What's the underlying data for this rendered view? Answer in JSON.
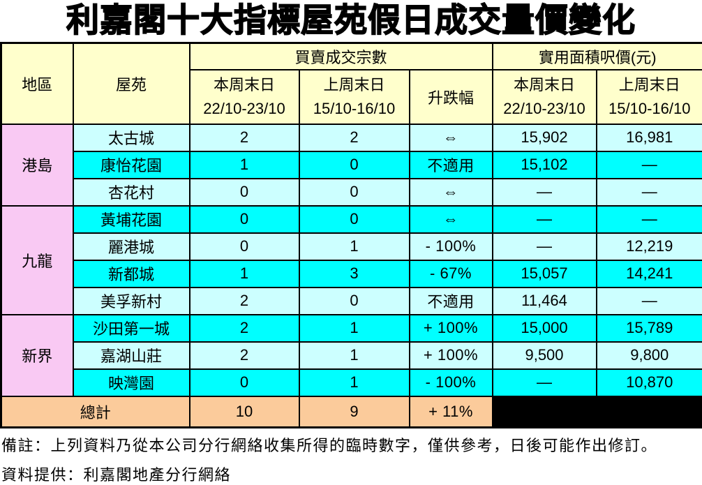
{
  "title": "利嘉閣十大指標屋苑假日成交量價變化",
  "table": {
    "headers": {
      "district": "地區",
      "estate": "屋苑",
      "transactions_group": "買賣成交宗數",
      "price_group": "實用面積呎價(元)",
      "this_week_label": "本周末日",
      "this_week_dates": "22/10-23/10",
      "last_week_label": "上周末日",
      "last_week_dates": "15/10-16/10",
      "change": "升跌幅"
    },
    "districts": [
      {
        "name": "港島",
        "rowspan": 3
      },
      {
        "name": "九龍",
        "rowspan": 4
      },
      {
        "name": "新界",
        "rowspan": 3
      }
    ],
    "rows": [
      {
        "estate": "太古城",
        "tx_this": "2",
        "tx_last": "2",
        "change": "⇔",
        "px_this": "15,902",
        "px_last": "16,981"
      },
      {
        "estate": "康怡花園",
        "tx_this": "1",
        "tx_last": "0",
        "change": "不適用",
        "px_this": "15,102",
        "px_last": "—"
      },
      {
        "estate": "杏花村",
        "tx_this": "0",
        "tx_last": "0",
        "change": "⇔",
        "px_this": "—",
        "px_last": "—"
      },
      {
        "estate": "黃埔花園",
        "tx_this": "0",
        "tx_last": "0",
        "change": "⇔",
        "px_this": "—",
        "px_last": "—"
      },
      {
        "estate": "麗港城",
        "tx_this": "0",
        "tx_last": "1",
        "change": "- 100%",
        "px_this": "—",
        "px_last": "12,219"
      },
      {
        "estate": "新都城",
        "tx_this": "1",
        "tx_last": "3",
        "change": "- 67%",
        "px_this": "15,057",
        "px_last": "14,241"
      },
      {
        "estate": "美孚新村",
        "tx_this": "2",
        "tx_last": "0",
        "change": "不適用",
        "px_this": "11,464",
        "px_last": "—"
      },
      {
        "estate": "沙田第一城",
        "tx_this": "2",
        "tx_last": "1",
        "change": "+ 100%",
        "px_this": "15,000",
        "px_last": "15,789"
      },
      {
        "estate": "嘉湖山莊",
        "tx_this": "2",
        "tx_last": "1",
        "change": "+ 100%",
        "px_this": "9,500",
        "px_last": "9,800"
      },
      {
        "estate": "映灣園",
        "tx_this": "0",
        "tx_last": "1",
        "change": "- 100%",
        "px_this": "—",
        "px_last": "10,870"
      }
    ],
    "total": {
      "label": "總計",
      "tx_this": "10",
      "tx_last": "9",
      "change": "+ 11%"
    }
  },
  "notes": {
    "remark": "備註：上列資料乃從本公司分行網絡收集所得的臨時數字，僅供參考，日後可能作出修訂。",
    "source": "資料提供：利嘉閣地產分行網絡"
  },
  "colors": {
    "header_bg": "#FFFFCC",
    "district_bg": "#F9C9F3",
    "row_light": "#CCFFFF",
    "row_dark": "#00FFFF",
    "total_bg": "#FBCB9B",
    "blackout": "#000000",
    "border": "#000000"
  }
}
